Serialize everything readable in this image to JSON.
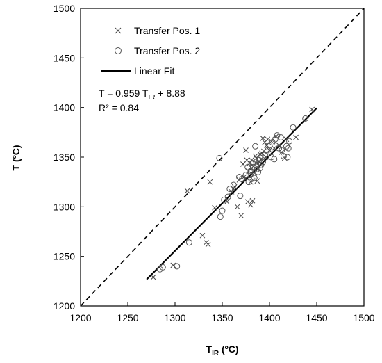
{
  "chart_data": {
    "type": "scatter",
    "xlabel_main": "T",
    "xlabel_sub": "IR",
    "xlabel_unit": " (ºC)",
    "ylabel": "T (ºC)",
    "xlim": [
      1200,
      1500
    ],
    "ylim": [
      1200,
      1500
    ],
    "x_ticks": [
      1200,
      1250,
      1300,
      1350,
      1400,
      1450,
      1500
    ],
    "y_ticks": [
      1200,
      1250,
      1300,
      1350,
      1400,
      1450,
      1500
    ],
    "grid": false,
    "legend_position": "top-left",
    "reference_line": {
      "style": "dashed",
      "from": [
        1200,
        1200
      ],
      "to": [
        1500,
        1500
      ]
    },
    "fit_line": {
      "name": "Linear Fit",
      "from": [
        1270,
        1226.8
      ],
      "to": [
        1450,
        1399.4
      ]
    },
    "equation": {
      "prefix": "T = 0.959 T",
      "sub": "IR",
      "suffix": " + 8.88",
      "r2": "R² = 0.84"
    },
    "series": [
      {
        "name": "Transfer Pos. 1",
        "marker": "x",
        "points": [
          [
            1277,
            1229
          ],
          [
            1298,
            1241
          ],
          [
            1313,
            1316
          ],
          [
            1329,
            1271
          ],
          [
            1333,
            1264
          ],
          [
            1335,
            1262
          ],
          [
            1337,
            1325
          ],
          [
            1342,
            1299
          ],
          [
            1355,
            1305
          ],
          [
            1360,
            1315
          ],
          [
            1362,
            1318
          ],
          [
            1363,
            1320
          ],
          [
            1366,
            1300
          ],
          [
            1368,
            1327
          ],
          [
            1370,
            1291
          ],
          [
            1372,
            1343
          ],
          [
            1373,
            1330
          ],
          [
            1374,
            1328
          ],
          [
            1375,
            1357
          ],
          [
            1376,
            1347
          ],
          [
            1377,
            1305
          ],
          [
            1378,
            1336
          ],
          [
            1379,
            1344
          ],
          [
            1380,
            1302
          ],
          [
            1380,
            1325
          ],
          [
            1381,
            1339
          ],
          [
            1381,
            1347
          ],
          [
            1382,
            1306
          ],
          [
            1383,
            1341
          ],
          [
            1384,
            1334
          ],
          [
            1385,
            1351
          ],
          [
            1386,
            1349
          ],
          [
            1386,
            1344
          ],
          [
            1387,
            1326
          ],
          [
            1388,
            1338
          ],
          [
            1389,
            1345
          ],
          [
            1390,
            1353
          ],
          [
            1391,
            1348
          ],
          [
            1392,
            1354
          ],
          [
            1393,
            1369
          ],
          [
            1394,
            1356
          ],
          [
            1395,
            1365
          ],
          [
            1396,
            1350
          ],
          [
            1397,
            1362
          ],
          [
            1398,
            1368
          ],
          [
            1400,
            1357
          ],
          [
            1402,
            1366
          ],
          [
            1405,
            1359
          ],
          [
            1407,
            1371
          ],
          [
            1410,
            1362
          ],
          [
            1413,
            1355
          ],
          [
            1416,
            1349
          ],
          [
            1418,
            1368
          ],
          [
            1428,
            1370
          ],
          [
            1445,
            1398
          ]
        ]
      },
      {
        "name": "Transfer Pos. 2",
        "marker": "o",
        "points": [
          [
            1284,
            1237
          ],
          [
            1287,
            1239
          ],
          [
            1302,
            1240
          ],
          [
            1315,
            1264
          ],
          [
            1347,
            1349
          ],
          [
            1348,
            1290
          ],
          [
            1350,
            1296
          ],
          [
            1352,
            1307
          ],
          [
            1356,
            1310
          ],
          [
            1358,
            1318
          ],
          [
            1362,
            1322
          ],
          [
            1368,
            1330
          ],
          [
            1369,
            1311
          ],
          [
            1371,
            1328
          ],
          [
            1375,
            1332
          ],
          [
            1377,
            1340
          ],
          [
            1378,
            1325
          ],
          [
            1379,
            1332
          ],
          [
            1380,
            1336
          ],
          [
            1381,
            1328
          ],
          [
            1382,
            1344
          ],
          [
            1383,
            1340
          ],
          [
            1384,
            1329
          ],
          [
            1385,
            1361
          ],
          [
            1386,
            1342
          ],
          [
            1387,
            1338
          ],
          [
            1388,
            1335
          ],
          [
            1389,
            1347
          ],
          [
            1390,
            1339
          ],
          [
            1391,
            1342
          ],
          [
            1393,
            1345
          ],
          [
            1395,
            1352
          ],
          [
            1398,
            1357
          ],
          [
            1400,
            1362
          ],
          [
            1402,
            1350
          ],
          [
            1403,
            1365
          ],
          [
            1405,
            1348
          ],
          [
            1406,
            1368
          ],
          [
            1408,
            1372
          ],
          [
            1410,
            1359
          ],
          [
            1412,
            1370
          ],
          [
            1413,
            1357
          ],
          [
            1415,
            1351
          ],
          [
            1418,
            1361
          ],
          [
            1419,
            1350
          ],
          [
            1420,
            1359
          ],
          [
            1421,
            1366
          ],
          [
            1425,
            1380
          ],
          [
            1438,
            1389
          ]
        ]
      }
    ]
  }
}
